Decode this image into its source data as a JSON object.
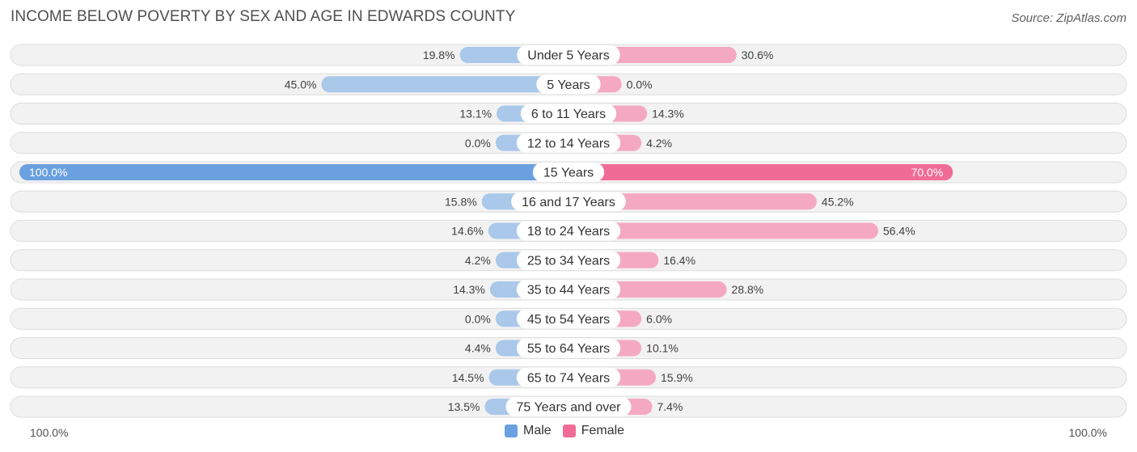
{
  "chart_data": {
    "type": "bar",
    "orientation": "horizontal-diverging",
    "title": "INCOME BELOW POVERTY BY SEX AND AGE IN EDWARDS COUNTY",
    "source": "Source: ZipAtlas.com",
    "categories": [
      "Under 5 Years",
      "5 Years",
      "6 to 11 Years",
      "12 to 14 Years",
      "15 Years",
      "16 and 17 Years",
      "18 to 24 Years",
      "25 to 34 Years",
      "35 to 44 Years",
      "45 to 54 Years",
      "55 to 64 Years",
      "65 to 74 Years",
      "75 Years and over"
    ],
    "series": [
      {
        "name": "Male",
        "values": [
          19.8,
          45.0,
          13.1,
          0.0,
          100.0,
          15.8,
          14.6,
          4.2,
          14.3,
          0.0,
          4.4,
          14.5,
          13.5
        ],
        "labels": [
          "19.8%",
          "45.0%",
          "13.1%",
          "0.0%",
          "100.0%",
          "15.8%",
          "14.6%",
          "4.2%",
          "14.3%",
          "0.0%",
          "4.4%",
          "14.5%",
          "13.5%"
        ]
      },
      {
        "name": "Female",
        "values": [
          30.6,
          0.0,
          14.3,
          4.2,
          70.0,
          45.2,
          56.4,
          16.4,
          28.8,
          6.0,
          10.1,
          15.9,
          7.4
        ],
        "labels": [
          "30.6%",
          "0.0%",
          "14.3%",
          "4.2%",
          "70.0%",
          "45.2%",
          "56.4%",
          "16.4%",
          "28.8%",
          "6.0%",
          "10.1%",
          "15.9%",
          "7.4%"
        ]
      }
    ],
    "xlim": [
      -100,
      100
    ],
    "axis_left_label": "100.0%",
    "axis_right_label": "100.0%",
    "legend_position": "bottom-center",
    "colors": {
      "male_light": "#a9c8ea",
      "male_dark": "#6aa0df",
      "female_light": "#f5a8c2",
      "female_dark": "#f06c97",
      "row_bg": "#f2f2f2"
    }
  }
}
